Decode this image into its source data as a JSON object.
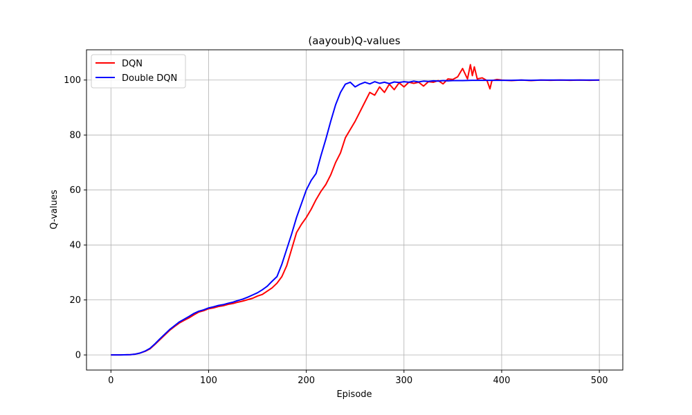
{
  "chart_data": {
    "type": "line",
    "title": "(aayoub)Q-values",
    "xlabel": "Episode",
    "ylabel": "Q-values",
    "xlim": [
      -25,
      524
    ],
    "ylim": [
      -5.5,
      111
    ],
    "xticks": [
      0,
      100,
      200,
      300,
      400,
      500
    ],
    "yticks": [
      0,
      20,
      40,
      60,
      80,
      100
    ],
    "grid": true,
    "legend_position": "top-left",
    "series": [
      {
        "name": "DQN",
        "color": "#ff0000",
        "x": [
          0,
          10,
          20,
          25,
          30,
          35,
          40,
          45,
          50,
          55,
          60,
          65,
          70,
          75,
          80,
          85,
          90,
          95,
          100,
          105,
          110,
          115,
          120,
          125,
          130,
          135,
          140,
          145,
          150,
          155,
          160,
          165,
          170,
          175,
          180,
          185,
          190,
          195,
          200,
          205,
          210,
          215,
          220,
          225,
          230,
          235,
          240,
          245,
          250,
          255,
          260,
          265,
          270,
          275,
          280,
          285,
          290,
          295,
          300,
          305,
          310,
          315,
          320,
          325,
          330,
          335,
          340,
          345,
          350,
          355,
          360,
          365,
          368,
          370,
          372,
          375,
          380,
          385,
          388,
          390,
          395,
          400,
          410,
          420,
          430,
          440,
          450,
          460,
          470,
          480,
          490,
          500
        ],
        "values": [
          0,
          0,
          0.1,
          0.3,
          0.7,
          1.3,
          2.2,
          3.8,
          5.5,
          7.2,
          8.9,
          10.3,
          11.6,
          12.6,
          13.5,
          14.6,
          15.6,
          16.1,
          16.8,
          17.1,
          17.6,
          17.9,
          18.4,
          18.7,
          19.2,
          19.6,
          20.1,
          20.6,
          21.4,
          22,
          23.2,
          24.4,
          26.1,
          28.5,
          32.5,
          38.5,
          44.5,
          47.5,
          50,
          53,
          56.5,
          59.5,
          62,
          65.5,
          70,
          73.5,
          79,
          82,
          85,
          88.5,
          92,
          95.5,
          94.5,
          97.5,
          95.5,
          98.5,
          96.5,
          99,
          97.5,
          99.2,
          98.8,
          99.2,
          97.8,
          99.4,
          99.2,
          99.8,
          98.6,
          100.4,
          100.2,
          101.2,
          104.2,
          100.4,
          105.6,
          101.6,
          104.8,
          100.4,
          100.8,
          99.8,
          96.8,
          99.8,
          100.2,
          100,
          99.8,
          100,
          99.8,
          100,
          99.9,
          100,
          99.9,
          100,
          99.9,
          100
        ]
      },
      {
        "name": "Double DQN",
        "color": "#0000ff",
        "x": [
          0,
          10,
          20,
          25,
          30,
          35,
          40,
          45,
          50,
          55,
          60,
          65,
          70,
          75,
          80,
          85,
          90,
          95,
          100,
          105,
          110,
          115,
          120,
          125,
          130,
          135,
          140,
          145,
          150,
          155,
          160,
          165,
          170,
          175,
          180,
          185,
          190,
          195,
          200,
          205,
          210,
          215,
          220,
          225,
          230,
          235,
          240,
          245,
          250,
          255,
          260,
          265,
          270,
          275,
          280,
          285,
          290,
          295,
          300,
          305,
          310,
          315,
          320,
          325,
          330,
          335,
          340,
          345,
          350,
          360,
          370,
          380,
          390,
          400,
          410,
          420,
          430,
          440,
          450,
          460,
          470,
          480,
          490,
          500
        ],
        "values": [
          0,
          0,
          0.1,
          0.3,
          0.7,
          1.4,
          2.4,
          4,
          5.8,
          7.5,
          9.2,
          10.6,
          12,
          13,
          14,
          15.1,
          15.9,
          16.4,
          17.1,
          17.5,
          18,
          18.3,
          18.8,
          19.2,
          19.8,
          20.3,
          21,
          21.8,
          22.6,
          23.7,
          25,
          26.8,
          28.5,
          33,
          38.5,
          44,
          50,
          55,
          60,
          63.5,
          66,
          72.5,
          78.5,
          85,
          91,
          95.5,
          98.5,
          99.2,
          97.5,
          98.5,
          99.2,
          98.6,
          99.4,
          98.8,
          99.2,
          98.7,
          99.3,
          99.1,
          99.4,
          99.2,
          99.6,
          99.3,
          99.6,
          99.5,
          99.7,
          99.6,
          99.8,
          99.7,
          99.8,
          99.8,
          99.9,
          99.9,
          99.9,
          99.9,
          99.9,
          100,
          99.9,
          100,
          100,
          100,
          100,
          100,
          100,
          100
        ]
      }
    ]
  }
}
